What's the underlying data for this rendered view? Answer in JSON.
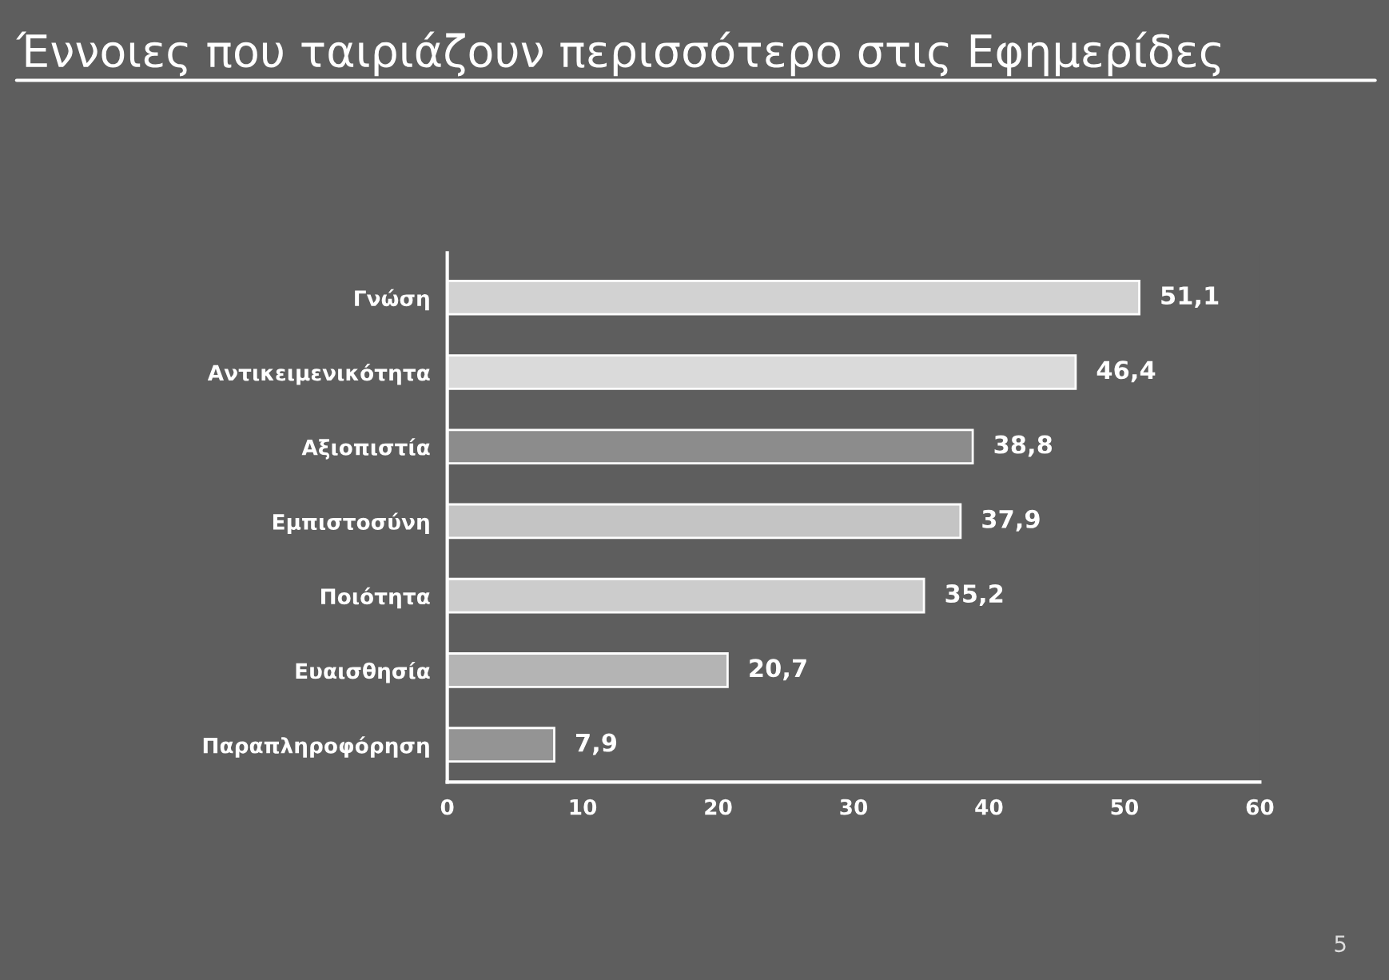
{
  "chart_data": {
    "type": "bar",
    "orientation": "horizontal",
    "title": "Έννοιες που ταιριάζουν περισσότερο στις Εφημερίδες",
    "categories": [
      "Γνώση",
      "Αντικειμενικότητα",
      "Αξιοπιστία",
      "Εμπιστοσύνη",
      "Ποιότητα",
      "Ευαισθησία",
      "Παραπληροφόρηση"
    ],
    "values": [
      51.1,
      46.4,
      38.8,
      37.9,
      35.2,
      20.7,
      7.9
    ],
    "value_labels": [
      "51,1",
      "46,4",
      "38,8",
      "37,9",
      "35,2",
      "20,7",
      "7,9"
    ],
    "colors": [
      "#d2d2d2",
      "#dadada",
      "#8c8c8c",
      "#c4c4c4",
      "#cccccc",
      "#b4b4b4",
      "#949494"
    ],
    "xlim": [
      0,
      60
    ],
    "xticks": [
      0,
      10,
      20,
      30,
      40,
      50,
      60
    ],
    "grid": false,
    "legend": false,
    "annotations": [
      "5"
    ]
  }
}
